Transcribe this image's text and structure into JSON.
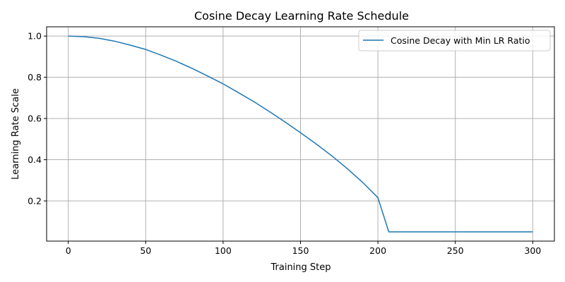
{
  "chart_data": {
    "type": "line",
    "title": "Cosine Decay Learning Rate Schedule",
    "xlabel": "Training Step",
    "ylabel": "Learning Rate Scale",
    "xlim": [
      -14,
      314
    ],
    "ylim": [
      0.005,
      1.045
    ],
    "xticks": [
      0,
      50,
      100,
      150,
      200,
      250,
      300
    ],
    "yticks": [
      0.2,
      0.4,
      0.6,
      0.8,
      1.0
    ],
    "ytick_labels": [
      "0.2",
      "0.4",
      "0.6",
      "0.8",
      "1.0"
    ],
    "grid": true,
    "legend_position": "upper right",
    "series": [
      {
        "name": "Cosine Decay with Min LR Ratio",
        "color": "#1f77b4",
        "x": [
          0,
          10,
          20,
          30,
          40,
          50,
          60,
          70,
          80,
          90,
          100,
          110,
          120,
          130,
          140,
          150,
          160,
          170,
          180,
          190,
          200,
          207,
          210,
          220,
          230,
          240,
          250,
          260,
          270,
          280,
          290,
          300
        ],
        "y": [
          1.0,
          0.997,
          0.989,
          0.975,
          0.956,
          0.935,
          0.907,
          0.877,
          0.843,
          0.806,
          0.768,
          0.725,
          0.681,
          0.633,
          0.583,
          0.531,
          0.477,
          0.42,
          0.358,
          0.291,
          0.216,
          0.05,
          0.05,
          0.05,
          0.05,
          0.05,
          0.05,
          0.05,
          0.05,
          0.05,
          0.05,
          0.05
        ]
      }
    ]
  }
}
